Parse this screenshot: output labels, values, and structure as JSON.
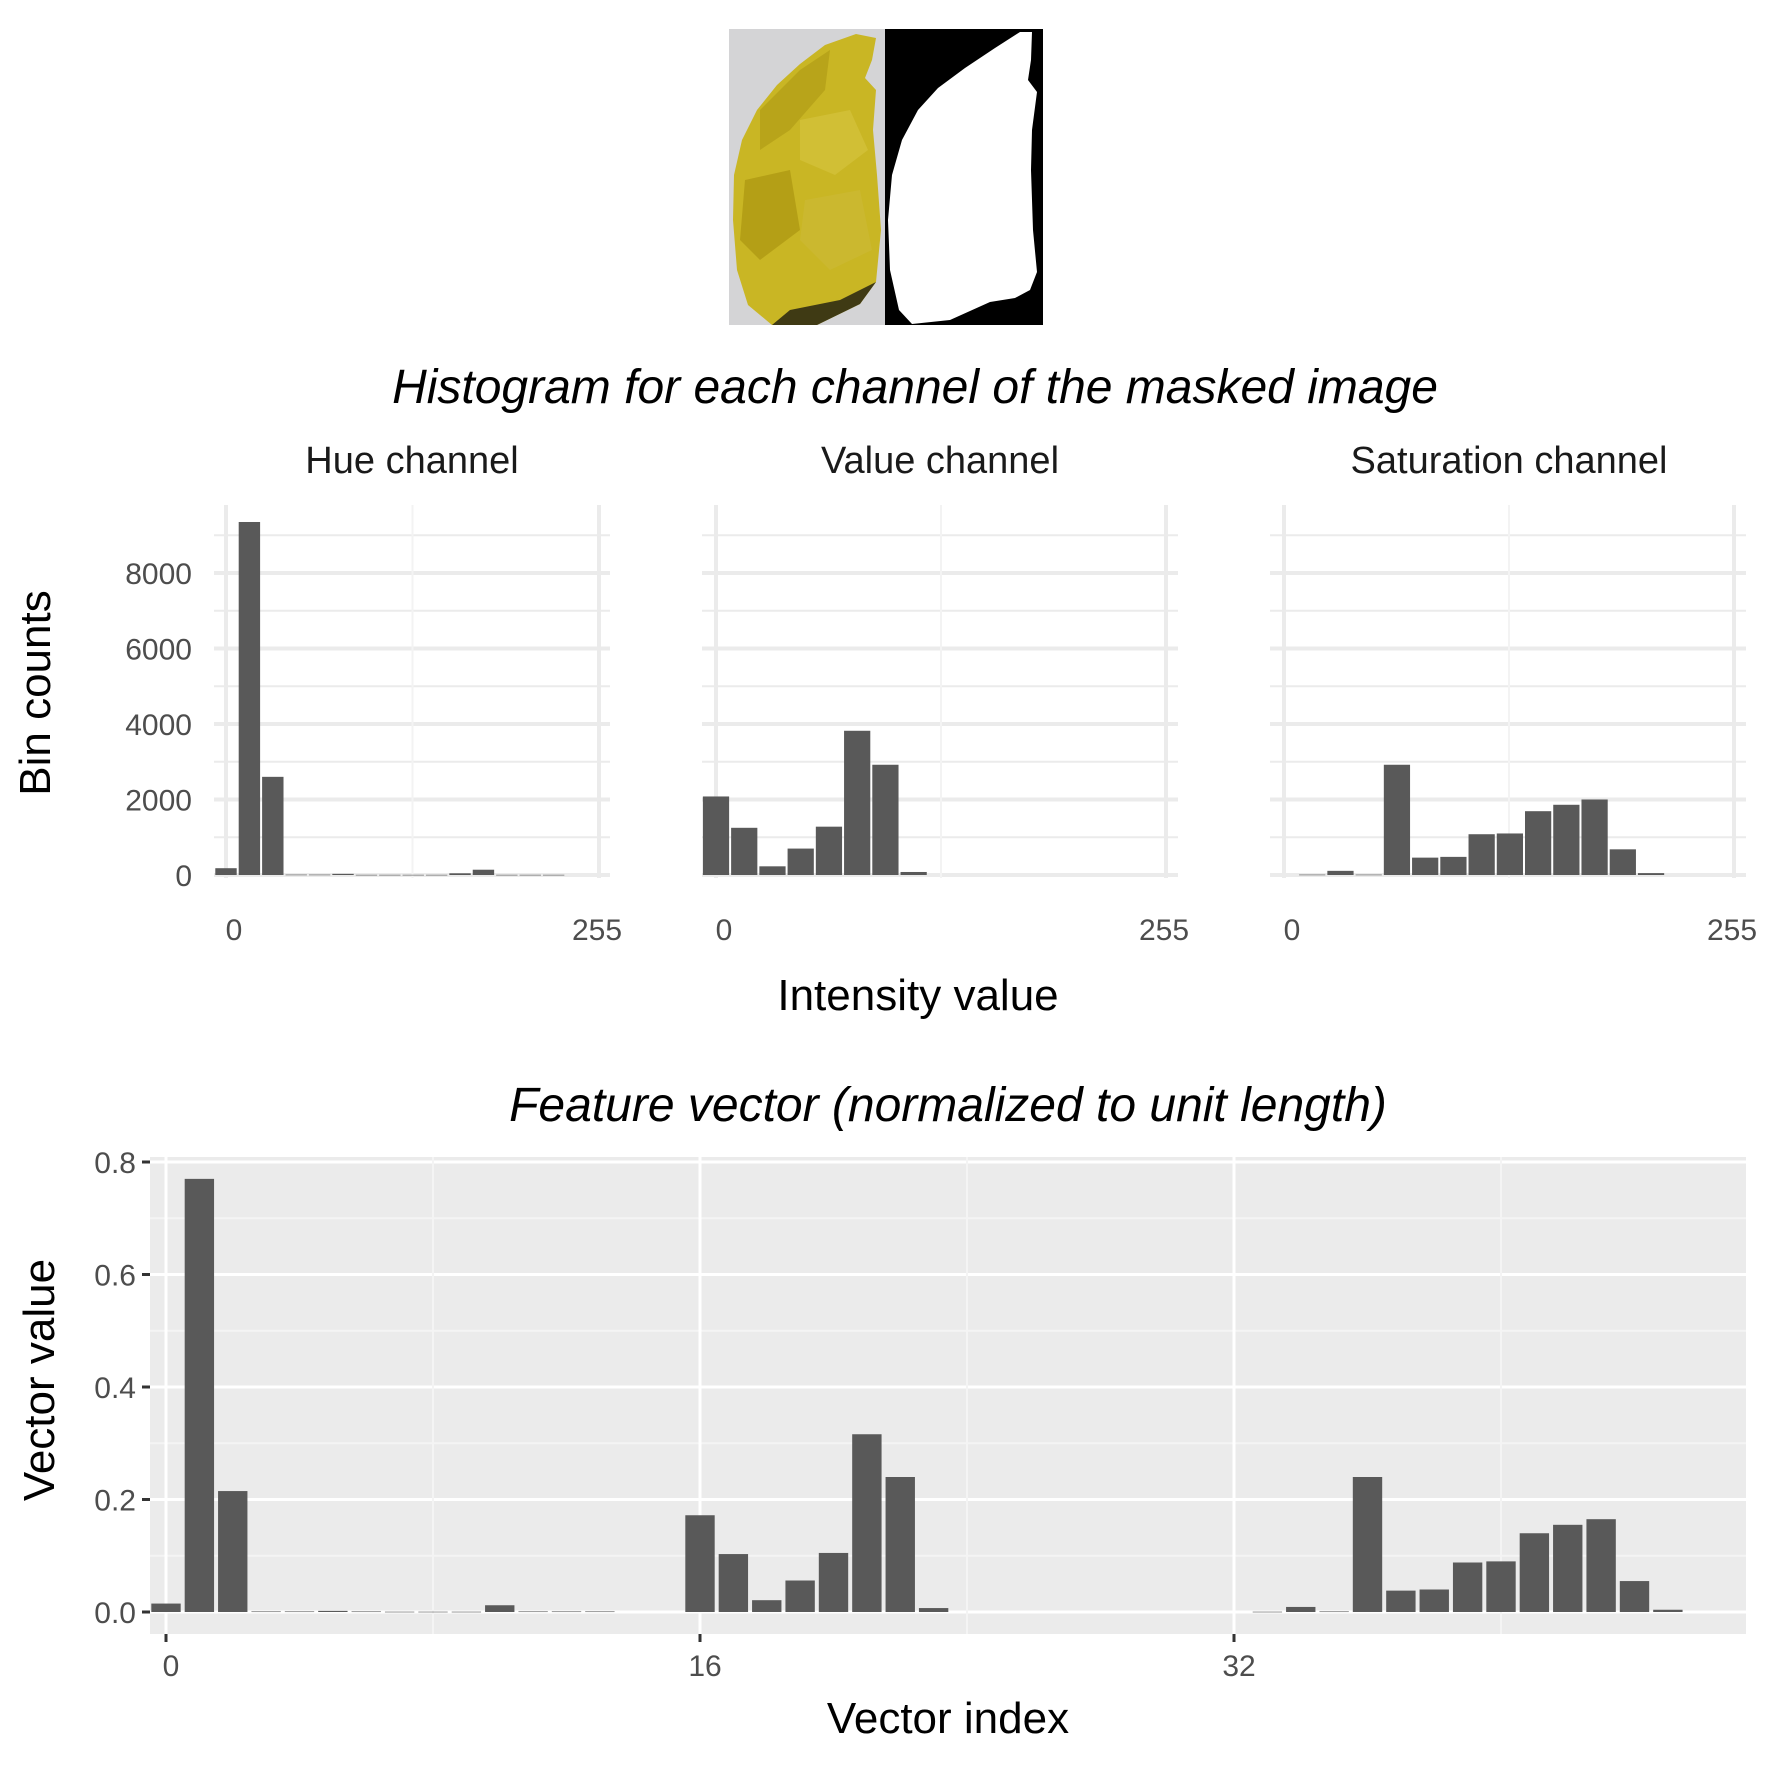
{
  "figure": {
    "images": [
      {
        "name": "banana-image",
        "description": "banana on grey background"
      },
      {
        "name": "mask-image",
        "description": "binary mask of banana"
      }
    ]
  },
  "chart_data": [
    {
      "type": "bar",
      "title": "Histogram for each channel of the masked image",
      "xlabel": "Intensity value",
      "ylabel": "Bin counts",
      "ylim": [
        0,
        9800
      ],
      "yticks": [
        0,
        2000,
        4000,
        6000,
        8000
      ],
      "xticks": [
        "0",
        "255"
      ],
      "bin_width": 16,
      "grid": true,
      "panels": [
        {
          "name": "Hue channel",
          "x": [
            0,
            16,
            32,
            48,
            64,
            80,
            96,
            112,
            128,
            144,
            160,
            176,
            192,
            208,
            224,
            240
          ],
          "values": [
            180,
            9350,
            2600,
            10,
            10,
            30,
            5,
            5,
            5,
            5,
            45,
            140,
            5,
            5,
            5,
            0
          ]
        },
        {
          "name": "Value channel",
          "x": [
            0,
            16,
            32,
            48,
            64,
            80,
            96,
            112,
            128,
            144,
            160,
            176,
            192,
            208,
            224,
            240
          ],
          "values": [
            2080,
            1250,
            230,
            700,
            1280,
            3820,
            2920,
            80,
            0,
            0,
            0,
            0,
            0,
            0,
            0,
            0
          ]
        },
        {
          "name": "Saturation channel",
          "x": [
            0,
            16,
            32,
            48,
            64,
            80,
            96,
            112,
            128,
            144,
            160,
            176,
            192,
            208,
            224,
            240
          ],
          "values": [
            0,
            10,
            110,
            10,
            2920,
            460,
            480,
            1080,
            1100,
            1690,
            1860,
            2000,
            680,
            50,
            0,
            0
          ]
        }
      ]
    },
    {
      "type": "bar",
      "title": "Feature vector (normalized to unit length)",
      "xlabel": "Vector index",
      "ylabel": "Vector value",
      "ylim": [
        -0.025,
        0.805
      ],
      "yticks": [
        "0.0",
        "0.2",
        "0.4",
        "0.6",
        "0.8"
      ],
      "ytick_values": [
        0,
        0.2,
        0.4,
        0.6,
        0.8
      ],
      "xticks": [
        "0",
        "16",
        "32"
      ],
      "xtick_values": [
        0,
        16,
        32
      ],
      "grid": true,
      "values": [
        0.015,
        0.77,
        0.215,
        0.001,
        0.001,
        0.002,
        0.001,
        0.0005,
        0.0005,
        0.0005,
        0.012,
        0.001,
        0.001,
        0.001,
        0.0,
        0.0,
        0.172,
        0.103,
        0.021,
        0.056,
        0.105,
        0.316,
        0.24,
        0.007,
        0.0,
        0.0,
        0.0,
        0.0,
        0.0,
        0.0,
        0.0,
        0.0,
        0.0,
        0.0005,
        0.009,
        0.001,
        0.24,
        0.038,
        0.04,
        0.088,
        0.09,
        0.14,
        0.155,
        0.165,
        0.055,
        0.004,
        0.0,
        0.0
      ]
    }
  ]
}
